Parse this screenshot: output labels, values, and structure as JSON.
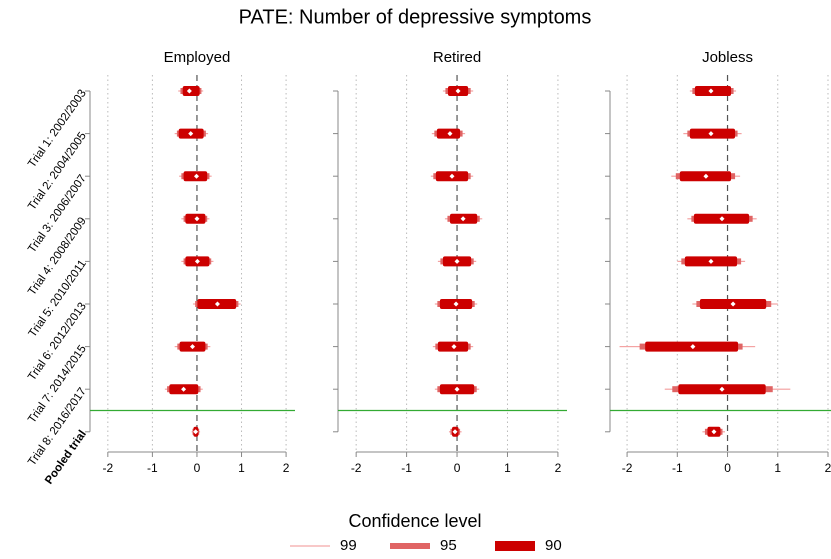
{
  "title": "PATE: Number of depressive symptoms",
  "legend_title": "Confidence level",
  "chart_data": [
    {
      "type": "forest",
      "title": "Employed",
      "categories": [
        "Trial 1: 2002/2003",
        "Trial 2: 2004/2005",
        "Trial 3: 2006/2007",
        "Trial 4: 2008/2009",
        "Trial 5: 2010/2011",
        "Trial 6: 2012/2013",
        "Trial 7: 2014/2015",
        "Trial 8: 2016/2017",
        "Pooled trial"
      ],
      "estimates": [
        -0.17,
        -0.14,
        -0.01,
        0,
        0.01,
        0.46,
        -0.1,
        -0.3,
        -0.03
      ],
      "series": [
        {
          "name": "99",
          "color": "#f4a3a3",
          "lower": [
            -0.42,
            -0.5,
            -0.4,
            -0.35,
            -0.35,
            -0.09,
            -0.5,
            -0.72,
            -0.12
          ],
          "upper": [
            0.14,
            0.25,
            0.33,
            0.28,
            0.37,
            0.98,
            0.3,
            0.13,
            0.07
          ]
        },
        {
          "name": "95",
          "color": "#e06464",
          "lower": [
            -0.37,
            -0.45,
            -0.35,
            -0.3,
            -0.3,
            -0.04,
            -0.44,
            -0.67,
            -0.1
          ],
          "upper": [
            0.1,
            0.2,
            0.28,
            0.23,
            0.32,
            0.93,
            0.24,
            0.08,
            0.05
          ]
        },
        {
          "name": "90",
          "color": "#cc0000",
          "lower": [
            -0.32,
            -0.41,
            -0.3,
            -0.26,
            -0.26,
            0.01,
            -0.39,
            -0.62,
            -0.08
          ],
          "upper": [
            0.06,
            0.15,
            0.23,
            0.19,
            0.28,
            0.88,
            0.19,
            0.03,
            0.03
          ]
        }
      ],
      "xlim": [
        -2.4,
        2.2
      ],
      "xticks": [
        -2,
        -1,
        0,
        1,
        2
      ],
      "grid": true
    },
    {
      "type": "forest",
      "title": "Retired",
      "estimates": [
        0.02,
        -0.14,
        -0.1,
        0.12,
        0,
        -0.02,
        -0.06,
        0,
        -0.04
      ],
      "series": [
        {
          "name": "99",
          "color": "#f4a3a3",
          "lower": [
            -0.28,
            -0.5,
            -0.52,
            -0.24,
            -0.38,
            -0.44,
            -0.48,
            -0.44,
            -0.16
          ],
          "upper": [
            0.32,
            0.16,
            0.32,
            0.5,
            0.38,
            0.4,
            0.32,
            0.44,
            0.09
          ]
        },
        {
          "name": "95",
          "color": "#e06464",
          "lower": [
            -0.23,
            -0.45,
            -0.47,
            -0.19,
            -0.33,
            -0.39,
            -0.43,
            -0.39,
            -0.13
          ],
          "upper": [
            0.27,
            0.11,
            0.27,
            0.45,
            0.33,
            0.35,
            0.27,
            0.39,
            0.06
          ]
        },
        {
          "name": "90",
          "color": "#cc0000",
          "lower": [
            -0.18,
            -0.4,
            -0.42,
            -0.14,
            -0.28,
            -0.34,
            -0.38,
            -0.34,
            -0.1
          ],
          "upper": [
            0.22,
            0.06,
            0.22,
            0.4,
            0.28,
            0.3,
            0.22,
            0.34,
            0.03
          ]
        }
      ],
      "xlim": [
        -2.36,
        2.18
      ],
      "xticks": [
        -2,
        -1,
        0,
        1,
        2
      ],
      "grid": true
    },
    {
      "type": "forest",
      "title": "Jobless",
      "estimates": [
        -0.33,
        -0.33,
        -0.43,
        -0.11,
        -0.33,
        0.11,
        -0.69,
        -0.11,
        -0.27
      ],
      "series": [
        {
          "name": "99",
          "color": "#f4a3a3",
          "lower": [
            -0.75,
            -0.88,
            -1.12,
            -0.8,
            -1.0,
            -0.7,
            -2.15,
            -1.25,
            -0.5
          ],
          "upper": [
            0.17,
            0.28,
            0.25,
            0.58,
            0.35,
            1.0,
            0.55,
            1.25,
            -0.05
          ]
        },
        {
          "name": "95",
          "color": "#e06464",
          "lower": [
            -0.7,
            -0.8,
            -1.03,
            -0.72,
            -0.92,
            -0.62,
            -1.75,
            -1.1,
            -0.45
          ],
          "upper": [
            0.12,
            0.2,
            0.15,
            0.5,
            0.27,
            0.87,
            0.3,
            0.9,
            -0.1
          ]
        },
        {
          "name": "90",
          "color": "#cc0000",
          "lower": [
            -0.65,
            -0.75,
            -0.95,
            -0.67,
            -0.85,
            -0.55,
            -1.64,
            -0.98,
            -0.4
          ],
          "upper": [
            0.07,
            0.15,
            0.07,
            0.43,
            0.19,
            0.77,
            0.21,
            0.76,
            -0.14
          ]
        }
      ],
      "xlim": [
        -2.34,
        2.06
      ],
      "xticks": [
        -2,
        -1,
        0,
        1,
        2
      ],
      "grid": true
    }
  ]
}
